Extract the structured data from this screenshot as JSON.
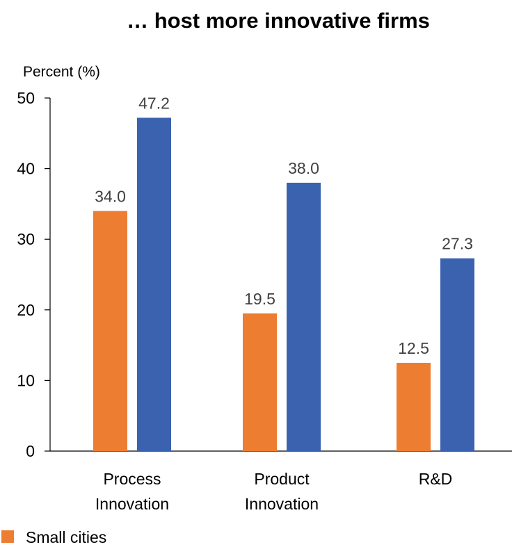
{
  "chart_data": {
    "type": "bar",
    "title": "… host more innovative firms",
    "ylabel": "Percent (%)",
    "xlabel": "",
    "ylim": [
      0,
      50
    ],
    "yticks": [
      0,
      10,
      20,
      30,
      40,
      50
    ],
    "categories": [
      [
        "Process",
        "Innovation"
      ],
      [
        "Product",
        "Innovation"
      ],
      [
        "R&D"
      ]
    ],
    "series": [
      {
        "name": "Small cities",
        "color": "#ED7D31",
        "values": [
          34.0,
          19.5,
          12.5
        ]
      },
      {
        "color": "#3A62AF",
        "values": [
          47.2,
          38.0,
          27.3
        ]
      }
    ],
    "grid": false,
    "legend": "bottom-left"
  }
}
